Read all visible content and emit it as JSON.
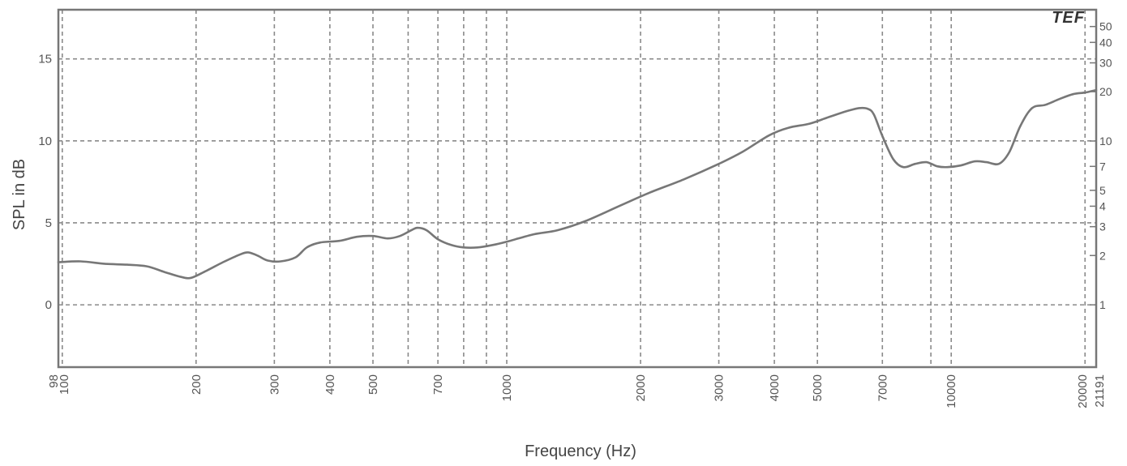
{
  "chart_data": {
    "type": "line",
    "xscale": "log",
    "xlim": [
      98,
      21191
    ],
    "ylim": [
      -3.8,
      18
    ],
    "grid": true,
    "xlabel": "Frequency (Hz)",
    "ylabel": "SPL in dB",
    "logo_text": "TEF",
    "x_ticks": [
      {
        "value": 98,
        "label": "98"
      },
      {
        "value": 100,
        "label": "100"
      },
      {
        "value": 200,
        "label": "200"
      },
      {
        "value": 300,
        "label": "300"
      },
      {
        "value": 400,
        "label": "400"
      },
      {
        "value": 500,
        "label": "500"
      },
      {
        "value": 700,
        "label": "700"
      },
      {
        "value": 1000,
        "label": "1000"
      },
      {
        "value": 2000,
        "label": "2000"
      },
      {
        "value": 3000,
        "label": "3000"
      },
      {
        "value": 4000,
        "label": "4000"
      },
      {
        "value": 5000,
        "label": "5000"
      },
      {
        "value": 7000,
        "label": "7000"
      },
      {
        "value": 10000,
        "label": "10000"
      },
      {
        "value": 20000,
        "label": "20000"
      },
      {
        "value": 21191,
        "label": "21191"
      }
    ],
    "x_minor_grid": [
      600,
      800,
      900,
      9000
    ],
    "y_ticks": [
      {
        "value": 0,
        "label": "0"
      },
      {
        "value": 5,
        "label": "5"
      },
      {
        "value": 10,
        "label": "10"
      },
      {
        "value": 15,
        "label": "15"
      }
    ],
    "right_axis_ticks": [
      {
        "value": 1,
        "label": "1"
      },
      {
        "value": 2,
        "label": "2"
      },
      {
        "value": 3,
        "label": "3"
      },
      {
        "value": 4,
        "label": "4"
      },
      {
        "value": 5,
        "label": "5"
      },
      {
        "value": 7,
        "label": "7"
      },
      {
        "value": 10,
        "label": "10"
      },
      {
        "value": 20,
        "label": "20"
      },
      {
        "value": 30,
        "label": "30"
      },
      {
        "value": 40,
        "label": "40"
      },
      {
        "value": 50,
        "label": "50"
      }
    ],
    "series": [
      {
        "color": "#777777",
        "points": [
          [
            98,
            2.6
          ],
          [
            110,
            2.65
          ],
          [
            125,
            2.5
          ],
          [
            140,
            2.45
          ],
          [
            155,
            2.35
          ],
          [
            170,
            2.0
          ],
          [
            185,
            1.7
          ],
          [
            195,
            1.65
          ],
          [
            210,
            2.05
          ],
          [
            230,
            2.6
          ],
          [
            250,
            3.05
          ],
          [
            262,
            3.2
          ],
          [
            275,
            3.0
          ],
          [
            290,
            2.7
          ],
          [
            310,
            2.65
          ],
          [
            335,
            2.9
          ],
          [
            355,
            3.5
          ],
          [
            380,
            3.8
          ],
          [
            420,
            3.9
          ],
          [
            460,
            4.15
          ],
          [
            500,
            4.2
          ],
          [
            540,
            4.05
          ],
          [
            575,
            4.2
          ],
          [
            610,
            4.55
          ],
          [
            630,
            4.7
          ],
          [
            660,
            4.55
          ],
          [
            700,
            4.0
          ],
          [
            750,
            3.65
          ],
          [
            800,
            3.5
          ],
          [
            860,
            3.5
          ],
          [
            930,
            3.65
          ],
          [
            1000,
            3.85
          ],
          [
            1150,
            4.3
          ],
          [
            1300,
            4.55
          ],
          [
            1500,
            5.1
          ],
          [
            1800,
            6.05
          ],
          [
            2100,
            6.85
          ],
          [
            2500,
            7.65
          ],
          [
            3000,
            8.6
          ],
          [
            3400,
            9.35
          ],
          [
            3900,
            10.35
          ],
          [
            4300,
            10.8
          ],
          [
            4800,
            11.05
          ],
          [
            5300,
            11.45
          ],
          [
            5800,
            11.8
          ],
          [
            6200,
            12.0
          ],
          [
            6500,
            11.95
          ],
          [
            6700,
            11.6
          ],
          [
            7000,
            10.3
          ],
          [
            7400,
            8.9
          ],
          [
            7800,
            8.4
          ],
          [
            8300,
            8.6
          ],
          [
            8800,
            8.7
          ],
          [
            9300,
            8.45
          ],
          [
            9800,
            8.4
          ],
          [
            10500,
            8.5
          ],
          [
            11300,
            8.75
          ],
          [
            12000,
            8.7
          ],
          [
            12800,
            8.6
          ],
          [
            13500,
            9.3
          ],
          [
            14300,
            10.9
          ],
          [
            15200,
            12.0
          ],
          [
            16300,
            12.2
          ],
          [
            17500,
            12.55
          ],
          [
            18800,
            12.85
          ],
          [
            20000,
            12.95
          ],
          [
            21191,
            13.1
          ]
        ]
      }
    ]
  }
}
